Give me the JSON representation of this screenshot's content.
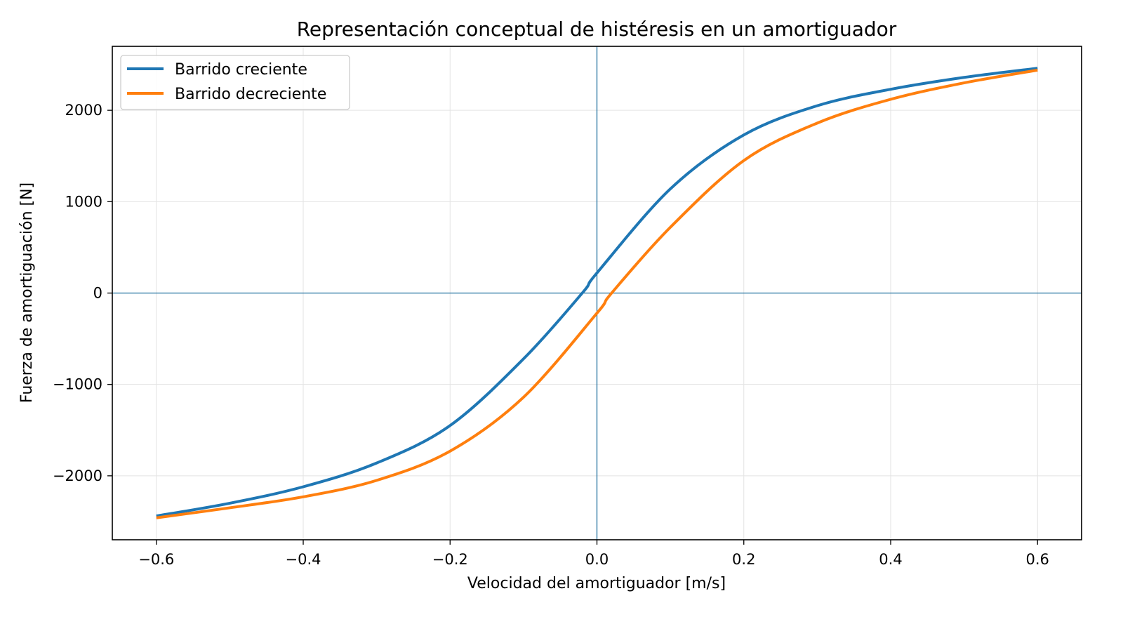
{
  "chart_data": {
    "type": "line",
    "title": "Representación conceptual de histéresis en un amortiguador",
    "xlabel": "Velocidad del amortiguador [m/s]",
    "ylabel": "Fuerza de amortiguación [N]",
    "xlim": [
      -0.66,
      0.66
    ],
    "ylim": [
      -2700,
      2700
    ],
    "xticks": [
      -0.6,
      -0.4,
      -0.2,
      0.0,
      0.2,
      0.4,
      0.6
    ],
    "xtick_labels": [
      "−0.6",
      "−0.4",
      "−0.2",
      "0.0",
      "0.2",
      "0.4",
      "0.6"
    ],
    "yticks": [
      -2000,
      -1000,
      0,
      1000,
      2000
    ],
    "ytick_labels": [
      "−2000",
      "−1000",
      "0",
      "1000",
      "2000"
    ],
    "grid": true,
    "reference_lines": {
      "x": 0,
      "y": 0,
      "color": "#1f6f9f"
    },
    "legend_position": "top-left",
    "series": [
      {
        "name": "Barrido creciente",
        "color": "#1f77b4",
        "x": [
          -0.6,
          -0.5,
          -0.4,
          -0.3,
          -0.2,
          -0.1,
          -0.02,
          0.0,
          0.1,
          0.2,
          0.3,
          0.4,
          0.5,
          0.6
        ],
        "y": [
          -2440,
          -2300,
          -2120,
          -1860,
          -1450,
          -720,
          0,
          220,
          1140,
          1730,
          2050,
          2230,
          2360,
          2460
        ]
      },
      {
        "name": "Barrido decreciente",
        "color": "#ff7f0e",
        "x": [
          -0.6,
          -0.5,
          -0.4,
          -0.3,
          -0.2,
          -0.1,
          0.0,
          0.02,
          0.1,
          0.2,
          0.3,
          0.4,
          0.5,
          0.6
        ],
        "y": [
          -2460,
          -2350,
          -2230,
          -2050,
          -1730,
          -1140,
          -220,
          0,
          720,
          1450,
          1860,
          2120,
          2300,
          2440
        ]
      }
    ]
  }
}
